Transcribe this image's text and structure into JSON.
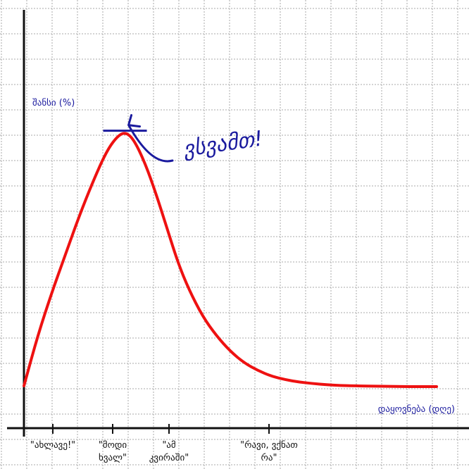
{
  "chart_data": {
    "type": "line",
    "title": "",
    "ylabel": "შანსი (%)",
    "xlabel": "დაყოვნება (დღე)",
    "x_ticks": [
      {
        "x": 1,
        "label": "\"ახლავე!\""
      },
      {
        "x": 3,
        "label": "\"მოდი ხვალ\""
      },
      {
        "x": 5,
        "label": "\"ამ კვირაში\""
      },
      {
        "x": 9,
        "label": "\"რავი, ვქნათ რა\""
      }
    ],
    "xlim": [
      0,
      15
    ],
    "ylim": [
      0,
      100
    ],
    "series": [
      {
        "color": "#ee1111",
        "x": [
          0,
          0.5,
          1,
          1.5,
          2,
          2.5,
          3,
          3.4,
          3.7,
          4,
          4.4,
          4.8,
          5.2,
          5.6,
          6,
          6.5,
          7,
          7.5,
          8,
          8.5,
          9,
          9.5,
          10,
          10.5,
          11,
          11.5,
          12,
          13,
          14,
          15
        ],
        "y": [
          11,
          24,
          35,
          45,
          55,
          64,
          72,
          76,
          77,
          75,
          69,
          61,
          52,
          43,
          36,
          29,
          24,
          20,
          17,
          15,
          13.5,
          12.6,
          12,
          11.6,
          11.3,
          11.1,
          11,
          10.9,
          10.8,
          10.8
        ]
      }
    ],
    "annotation": {
      "text": "ვსვამთ!",
      "x": 3.7,
      "y": 77
    },
    "grid": true,
    "grid_color": "#aaaaaa",
    "axis_color": "#111111",
    "annotation_color": "#1a1a9e"
  }
}
